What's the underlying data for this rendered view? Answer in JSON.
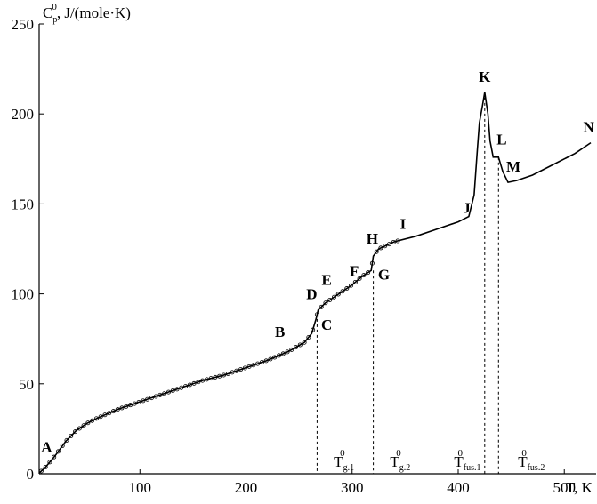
{
  "chart_data": {
    "type": "line",
    "title": "",
    "xlabel": "T, K",
    "ylabel_main": "C",
    "ylabel_sub": "p",
    "ylabel_sup": "0",
    "ylabel_rest": ", J/(mole·K)",
    "xlim": [
      5,
      530
    ],
    "ylim": [
      0,
      250
    ],
    "xticks": [
      100,
      200,
      300,
      400,
      500
    ],
    "yticks": [
      0,
      50,
      100,
      150,
      200,
      250
    ],
    "grid": false,
    "series": [
      {
        "values": [
          [
            5,
            0.5
          ],
          [
            10,
            3
          ],
          [
            20,
            10
          ],
          [
            30,
            18
          ],
          [
            40,
            24
          ],
          [
            50,
            28
          ],
          [
            60,
            31
          ],
          [
            80,
            36
          ],
          [
            100,
            40
          ],
          [
            120,
            44
          ],
          [
            140,
            48
          ],
          [
            160,
            52
          ],
          [
            180,
            55
          ],
          [
            200,
            59
          ],
          [
            220,
            63
          ],
          [
            240,
            68
          ],
          [
            255,
            73
          ],
          [
            262,
            78
          ],
          [
            266,
            86
          ],
          [
            268,
            91
          ],
          [
            275,
            95
          ],
          [
            290,
            101
          ],
          [
            300,
            105
          ],
          [
            310,
            110
          ],
          [
            318,
            113
          ],
          [
            320,
            121
          ],
          [
            325,
            125
          ],
          [
            340,
            129
          ],
          [
            360,
            132
          ],
          [
            380,
            136
          ],
          [
            400,
            140
          ],
          [
            410,
            143
          ],
          [
            415,
            155
          ],
          [
            418,
            180
          ],
          [
            420,
            195
          ],
          [
            423,
            205
          ],
          [
            425,
            212
          ],
          [
            428,
            200
          ],
          [
            430,
            185
          ],
          [
            433,
            176
          ],
          [
            438,
            176
          ],
          [
            442,
            168
          ],
          [
            447,
            162
          ],
          [
            455,
            163
          ],
          [
            470,
            166
          ],
          [
            490,
            172
          ],
          [
            510,
            178
          ],
          [
            525,
            184
          ]
        ]
      }
    ],
    "point_labels": [
      {
        "text": "A",
        "x": 12,
        "y": 12
      },
      {
        "text": "B",
        "x": 232,
        "y": 76
      },
      {
        "text": "C",
        "x": 276,
        "y": 80
      },
      {
        "text": "D",
        "x": 262,
        "y": 97
      },
      {
        "text": "E",
        "x": 276,
        "y": 105
      },
      {
        "text": "F",
        "x": 302,
        "y": 110
      },
      {
        "text": "G",
        "x": 330,
        "y": 108
      },
      {
        "text": "H",
        "x": 319,
        "y": 128
      },
      {
        "text": "I",
        "x": 348,
        "y": 136
      },
      {
        "text": "J",
        "x": 408,
        "y": 145
      },
      {
        "text": "K",
        "x": 425,
        "y": 218
      },
      {
        "text": "L",
        "x": 441,
        "y": 183
      },
      {
        "text": "M",
        "x": 452,
        "y": 168
      },
      {
        "text": "N",
        "x": 523,
        "y": 190
      }
    ],
    "transition_lines": [
      {
        "x": 267,
        "y": 86,
        "label_main": "T",
        "label_sub": "g.1",
        "label_sup": "0"
      },
      {
        "x": 320,
        "y": 113,
        "label_main": "T",
        "label_sub": "g.2",
        "label_sup": "0"
      },
      {
        "x": 425,
        "y": 212,
        "label_main": "T",
        "label_sub": "fus.1",
        "label_sup": "0"
      },
      {
        "x": 438,
        "y": 176,
        "label_main": "T",
        "label_sub": "fus.2",
        "label_sup": "0"
      }
    ]
  }
}
